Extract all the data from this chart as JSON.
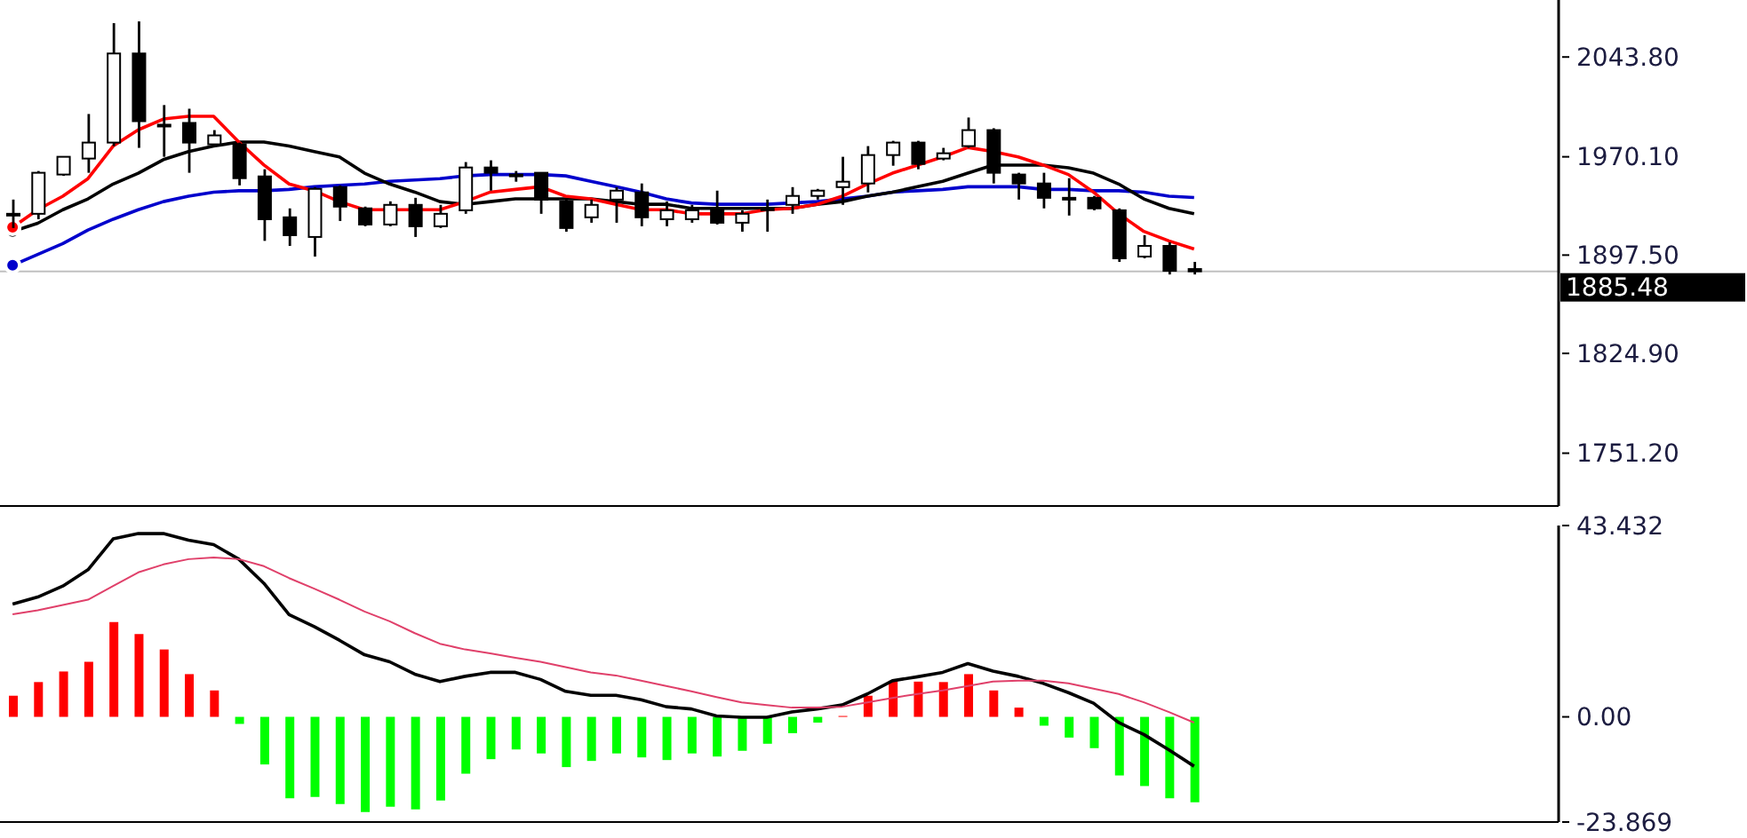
{
  "chart_data": [
    {
      "type": "candlestick",
      "tick_labels": "y",
      "categories": [
        null,
        null,
        null,
        null,
        null,
        null,
        null,
        null,
        null,
        null,
        null,
        null,
        null,
        null,
        null,
        null,
        null,
        null,
        null,
        null,
        null,
        null,
        null,
        null,
        null,
        null,
        null,
        null,
        null,
        null,
        null,
        null,
        null,
        null,
        null,
        null,
        null,
        null,
        null,
        null,
        null,
        null,
        null,
        null,
        null,
        null,
        null,
        null,
        null,
        null,
        null,
        null,
        null,
        null,
        null,
        null,
        null,
        null,
        null,
        null,
        null,
        null
      ],
      "ohlc": [
        [
          1928,
          1938.5,
          1917.5,
          1928
        ],
        [
          1928,
          1959.6,
          1924,
          1958.3
        ],
        [
          1957,
          1970.5,
          1956,
          1970.1
        ],
        [
          1968.8,
          2001.7,
          1958.3,
          1980.6
        ],
        [
          1980.6,
          2068.8,
          1978,
          2046.4
        ],
        [
          2046.4,
          2070.1,
          1976.7,
          1996.4
        ],
        [
          1993.8,
          2008.3,
          1970.1,
          1993.8
        ],
        [
          1995.1,
          2005.6,
          1958.3,
          1980.6
        ],
        [
          1979.3,
          1989.8,
          1978,
          1985.9
        ],
        [
          1979.3,
          1980.6,
          1949,
          1954.3
        ],
        [
          1955.6,
          1960.9,
          1908,
          1924
        ],
        [
          1925.4,
          1932,
          1904.3,
          1912.2
        ],
        [
          1910.9,
          1947.7,
          1896.4,
          1946.4
        ],
        [
          1947.7,
          1949,
          1922.7,
          1933.3
        ],
        [
          1932,
          1933.3,
          1918.8,
          1920.1
        ],
        [
          1920.1,
          1937.2,
          1918.8,
          1934.6
        ],
        [
          1934.6,
          1939.8,
          1910.9,
          1918.8
        ],
        [
          1918.8,
          1934.6,
          1917.5,
          1928
        ],
        [
          1930.6,
          1966.2,
          1928,
          1962.2
        ],
        [
          1962.2,
          1967.5,
          1945.1,
          1958.3
        ],
        [
          1957,
          1959.6,
          1951.7,
          1957
        ],
        [
          1958.3,
          1958.3,
          1928,
          1938.5
        ],
        [
          1937.2,
          1938.5,
          1914.8,
          1917.5
        ],
        [
          1925.4,
          1938.5,
          1921.4,
          1934.6
        ],
        [
          1938.5,
          1947.7,
          1921.4,
          1945.1
        ],
        [
          1943.8,
          1950.4,
          1918.8,
          1925.4
        ],
        [
          1924,
          1937.2,
          1918.8,
          1930.6
        ],
        [
          1924,
          1934.6,
          1921.4,
          1930.6
        ],
        [
          1932,
          1945.1,
          1920.1,
          1921.4
        ],
        [
          1921.4,
          1930.6,
          1914.8,
          1928
        ],
        [
          1932,
          1938.5,
          1914.8,
          1932
        ],
        [
          1934.6,
          1947.7,
          1928,
          1941.2
        ],
        [
          1941.2,
          1946.4,
          1938.5,
          1945.1
        ],
        [
          1947.7,
          1970.1,
          1934.6,
          1951.7
        ],
        [
          1950.4,
          1978,
          1943.8,
          1971.4
        ],
        [
          1971.4,
          1981.9,
          1963.5,
          1980.6
        ],
        [
          1980.6,
          1981.9,
          1960.9,
          1964.8
        ],
        [
          1968.8,
          1976.7,
          1967.5,
          1972.7
        ],
        [
          1978,
          1999.1,
          1976.7,
          1989.8
        ],
        [
          1989.8,
          1991.2,
          1950.4,
          1958.3
        ],
        [
          1957,
          1958.3,
          1938.5,
          1950.4
        ],
        [
          1950.4,
          1958.3,
          1932,
          1939.8
        ],
        [
          1939.8,
          1954.3,
          1926.7,
          1939.8
        ],
        [
          1939.8,
          1941.2,
          1930.6,
          1932
        ],
        [
          1930.6,
          1932,
          1892.5,
          1895.1
        ],
        [
          1896.4,
          1912.2,
          1895.1,
          1904.3
        ],
        [
          1904.3,
          1906.9,
          1883.2,
          1885.9
        ],
        [
          1887.2,
          1892.5,
          1883.2,
          1885.48
        ],
        null,
        null,
        null,
        null,
        null,
        null,
        null,
        null,
        null,
        null,
        null,
        null,
        null,
        null
      ],
      "series": [
        {
          "type": "line",
          "color": "#0000cc",
          "values": [
            1890,
            1898,
            1906,
            1916,
            1924,
            1931,
            1937,
            1941,
            1944,
            1945,
            1945,
            1946,
            1948,
            1949,
            1950,
            1952,
            1953,
            1954,
            1956,
            1957,
            1957,
            1957,
            1956,
            1952,
            1948,
            1944,
            1939,
            1936,
            1935,
            1935,
            1935,
            1936,
            1937,
            1939,
            1941,
            1944,
            1945,
            1946,
            1948,
            1948,
            1948,
            1946,
            1946,
            1945,
            1945,
            1944,
            1941,
            1940,
            null,
            null,
            null,
            null,
            null,
            null,
            null,
            null,
            null,
            null,
            null,
            null,
            null,
            null
          ]
        },
        {
          "type": "line",
          "color": "#000000",
          "values": [
            1915,
            1921,
            1931,
            1939,
            1950,
            1958,
            1968,
            1974,
            1978,
            1981,
            1981,
            1978,
            1974,
            1970,
            1958,
            1950,
            1944,
            1937,
            1935,
            1937,
            1939,
            1939,
            1939,
            1939,
            1937,
            1935,
            1935,
            1932,
            1932,
            1932,
            1932,
            1932,
            1935,
            1937,
            1941,
            1944,
            1948,
            1952,
            1958,
            1964,
            1964,
            1964,
            1962,
            1958,
            1950,
            1939,
            1932,
            1928,
            null,
            null,
            null,
            null,
            null,
            null,
            null,
            null,
            null,
            null,
            null,
            null,
            null,
            null
          ]
        },
        {
          "type": "line",
          "color": "#ff0000",
          "values": [
            1918,
            1931,
            1941,
            1954,
            1978,
            1990,
            1998,
            2000,
            2000,
            1981,
            1964,
            1950,
            1945,
            1937,
            1931,
            1931,
            1931,
            1931,
            1937,
            1944,
            1946,
            1948,
            1941,
            1939,
            1935,
            1931,
            1931,
            1928,
            1928,
            1928,
            1931,
            1932,
            1935,
            1941,
            1950,
            1958,
            1964,
            1970,
            1977,
            1974,
            1970,
            1964,
            1957,
            1944,
            1928,
            1915,
            1908,
            1902,
            null,
            null,
            null,
            null,
            null,
            null,
            null,
            null,
            null,
            null,
            null,
            null,
            null,
            null
          ]
        }
      ],
      "ylim": [
        1712.2,
        2085.9
      ],
      "yticks": [
        {
          "value": 1751.2,
          "label": "1751.20"
        },
        {
          "value": 1824.9,
          "label": "1824.90"
        },
        {
          "value": 1897.5,
          "label": "1897.50"
        },
        {
          "value": 1970.1,
          "label": "1970.10"
        },
        {
          "value": 2043.8,
          "label": "2043.80"
        }
      ],
      "ref_lines": [
        {
          "axis": "y",
          "value": 1885.48,
          "label": "1885.48",
          "color": "#c0c0c0"
        }
      ]
    },
    {
      "type": "bar",
      "tick_labels": "y",
      "categories": [
        null,
        null,
        null,
        null,
        null,
        null,
        null,
        null,
        null,
        null,
        null,
        null,
        null,
        null,
        null,
        null,
        null,
        null,
        null,
        null,
        null,
        null,
        null,
        null,
        null,
        null,
        null,
        null,
        null,
        null,
        null,
        null,
        null,
        null,
        null,
        null,
        null,
        null,
        null,
        null,
        null,
        null,
        null,
        null,
        null,
        null,
        null,
        null,
        null,
        null,
        null,
        null,
        null,
        null,
        null,
        null,
        null,
        null,
        null,
        null,
        null,
        null
      ],
      "series": [
        {
          "type": "bar",
          "values": [
            4.8,
            7.9,
            10.3,
            12.5,
            21.5,
            18.8,
            15.3,
            9.7,
            6.0,
            -1.6,
            -10.8,
            -18.5,
            -18.2,
            -19.8,
            -21.6,
            -20.4,
            -21.0,
            -19.0,
            -12.9,
            -9.6,
            -7.4,
            -8.3,
            -11.4,
            -10.0,
            -8.3,
            -9.2,
            -9.8,
            -8.3,
            -9.0,
            -7.7,
            -6.1,
            -3.7,
            -1.3,
            0.2,
            4.8,
            8.2,
            8.0,
            7.9,
            9.7,
            6.0,
            2.1,
            -2.0,
            -4.7,
            -7.1,
            -13.3,
            -15.7,
            -18.5,
            -19.4,
            null,
            null,
            null,
            null,
            null,
            null,
            null,
            null,
            null,
            null,
            null,
            null,
            null,
            null
          ],
          "colors": [
            "#ff0000",
            "#ff0000",
            "#ff0000",
            "#ff0000",
            "#ff0000",
            "#ff0000",
            "#ff0000",
            "#ff0000",
            "#ff0000",
            "#00ff00",
            "#00ff00",
            "#00ff00",
            "#00ff00",
            "#00ff00",
            "#00ff00",
            "#00ff00",
            "#00ff00",
            "#00ff00",
            "#00ff00",
            "#00ff00",
            "#00ff00",
            "#00ff00",
            "#00ff00",
            "#00ff00",
            "#00ff00",
            "#00ff00",
            "#00ff00",
            "#00ff00",
            "#00ff00",
            "#00ff00",
            "#00ff00",
            "#00ff00",
            "#00ff00",
            "#ff0000",
            "#ff0000",
            "#ff0000",
            "#ff0000",
            "#ff0000",
            "#ff0000",
            "#ff0000",
            "#ff0000",
            "#00ff00",
            "#00ff00",
            "#00ff00",
            "#00ff00",
            "#00ff00",
            "#00ff00",
            "#00ff00",
            "#00ff00",
            "#00ff00",
            "#00ff00",
            "#00ff00",
            "#00ff00",
            "#00ff00",
            "#00ff00",
            "#00ff00",
            "#00ff00",
            "#00ff00",
            "#00ff00",
            "#00ff00",
            "#00ff00",
            "#00ff00"
          ]
        },
        {
          "type": "line",
          "color": "#000000",
          "values": [
            25.6,
            27.2,
            29.7,
            33.4,
            40.4,
            41.6,
            41.6,
            40.1,
            39.1,
            35.8,
            30.3,
            23.2,
            20.5,
            17.4,
            14.1,
            12.5,
            9.7,
            8.0,
            9.2,
            10.1,
            10.1,
            8.5,
            5.8,
            4.9,
            4.9,
            3.9,
            2.3,
            1.8,
            0.2,
            -0.1,
            -0.1,
            1.1,
            1.8,
            2.7,
            5.2,
            8.2,
            9.1,
            10.1,
            12.1,
            10.4,
            9.2,
            7.6,
            5.5,
            3.1,
            -1.3,
            -4.0,
            -7.5,
            -11.2,
            null,
            null,
            null,
            null,
            null,
            null,
            null,
            null,
            null,
            null,
            null,
            null,
            null,
            null
          ]
        },
        {
          "type": "line",
          "color": "#e0406a",
          "values": [
            23.3,
            24.2,
            25.4,
            26.6,
            29.7,
            32.8,
            34.6,
            35.8,
            36.2,
            35.8,
            34.2,
            31.5,
            29.1,
            26.6,
            23.9,
            21.7,
            19.0,
            16.6,
            15.3,
            14.4,
            13.4,
            12.5,
            11.3,
            10.1,
            9.4,
            8.2,
            7.0,
            5.8,
            4.5,
            3.3,
            2.7,
            2.1,
            2.1,
            2.3,
            3.3,
            4.3,
            5.2,
            6.0,
            7.0,
            8.0,
            8.2,
            8.2,
            7.6,
            6.4,
            5.2,
            3.3,
            1.1,
            -1.3,
            null,
            null,
            null,
            null,
            null,
            null,
            null,
            null,
            null,
            null,
            null,
            null,
            null,
            null
          ]
        }
      ],
      "ylim": [
        -23.869,
        43.432
      ],
      "yticks": [
        {
          "value": -23.869,
          "label": "-23.869"
        },
        {
          "value": 0,
          "label": "0.00"
        },
        {
          "value": 43.432,
          "label": "43.432"
        }
      ]
    }
  ]
}
